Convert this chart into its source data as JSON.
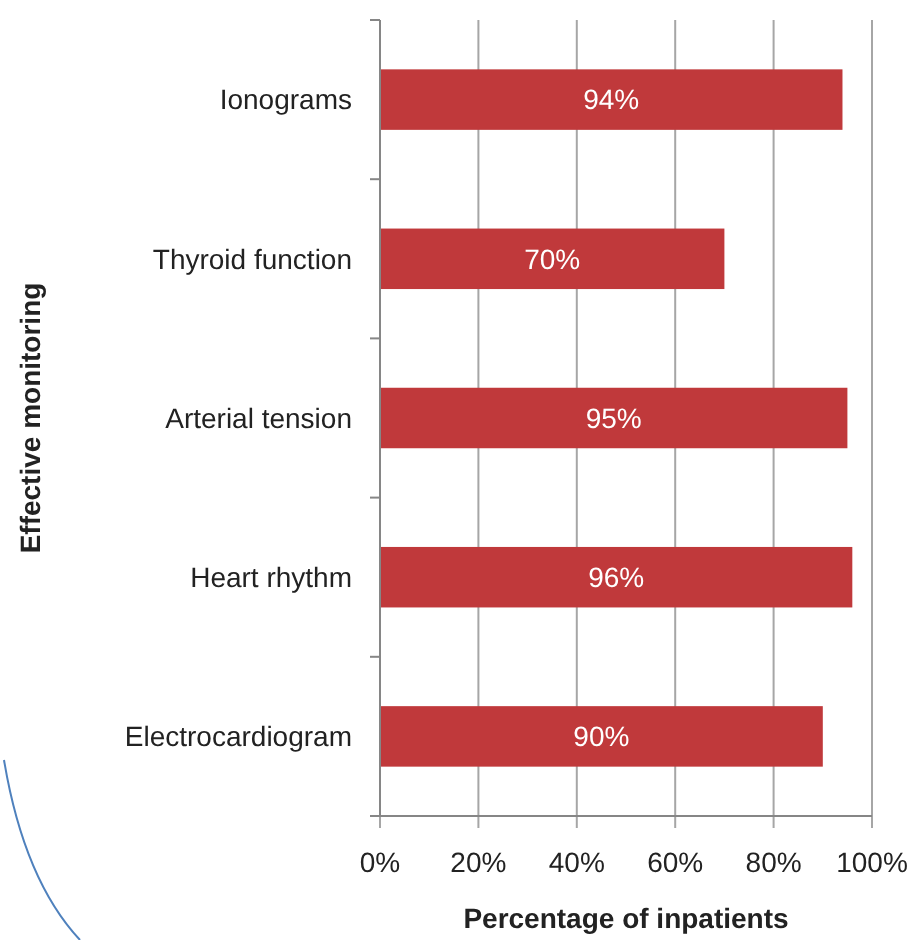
{
  "chart_data": {
    "type": "bar",
    "orientation": "horizontal",
    "xlabel": "Percentage of inpatients",
    "ylabel": "Effective monitoring",
    "categories": [
      "Ionograms",
      "Thyroid function",
      "Arterial tension",
      "Heart rhythm",
      "Electrocardiogram"
    ],
    "values": [
      94,
      70,
      95,
      96,
      90
    ],
    "color": "#c0393b",
    "value_labels": [
      "94%",
      "70%",
      "95%",
      "96%",
      "90%"
    ],
    "xlim": [
      0,
      100
    ],
    "xticks": [
      {
        "value": 0,
        "label": "0%"
      },
      {
        "value": 20,
        "label": "20%"
      },
      {
        "value": 40,
        "label": "40%"
      },
      {
        "value": 60,
        "label": "60%"
      },
      {
        "value": 80,
        "label": "80%"
      },
      {
        "value": 100,
        "label": "100%"
      }
    ],
    "grid": "x"
  }
}
